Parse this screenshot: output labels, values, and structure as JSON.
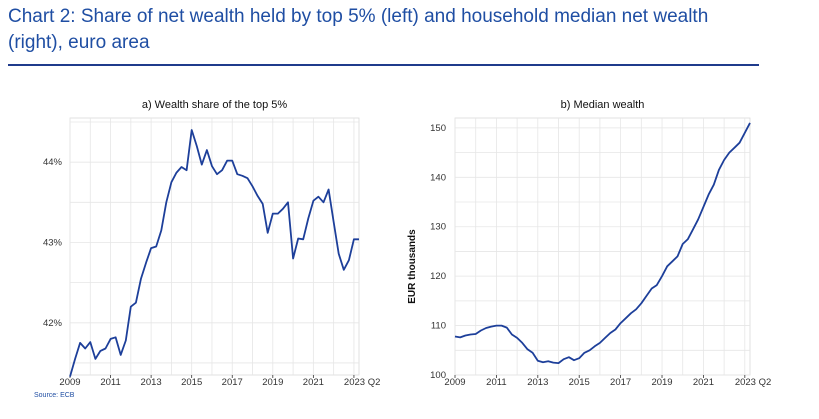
{
  "title": "Chart 2: Share of net wealth held by top 5% (left) and household median net wealth (right), euro area",
  "source": "Source: ECB",
  "colors": {
    "title": "#1f4ea3",
    "line": "#1d3f9a",
    "grid": "#e6e6e6",
    "axis": "#333333"
  },
  "chart_data": [
    {
      "type": "line",
      "title": "a) Wealth share of the top 5%",
      "xlabel": "",
      "ylabel": "",
      "xlim": [
        2009,
        2023.25
      ],
      "ylim": [
        41.35,
        44.55
      ],
      "yticks": [
        42,
        43,
        44
      ],
      "ytick_labels": [
        "42%",
        "43%",
        "44%"
      ],
      "xticks": [
        2009,
        2011,
        2013,
        2015,
        2017,
        2019,
        2021,
        2023
      ],
      "xtick_labels": [
        "2009",
        "2011",
        "2013",
        "2015",
        "2017",
        "2019",
        "2021",
        "2023 Q2"
      ],
      "grid": true,
      "series": [
        {
          "name": "Top 5% wealth share",
          "x": [
            2009,
            2009.25,
            2009.5,
            2009.75,
            2010,
            2010.25,
            2010.5,
            2010.75,
            2011,
            2011.25,
            2011.5,
            2011.75,
            2012,
            2012.25,
            2012.5,
            2012.75,
            2013,
            2013.25,
            2013.5,
            2013.75,
            2014,
            2014.25,
            2014.5,
            2014.75,
            2015,
            2015.25,
            2015.5,
            2015.75,
            2016,
            2016.25,
            2016.5,
            2016.75,
            2017,
            2017.25,
            2017.5,
            2017.75,
            2018,
            2018.25,
            2018.5,
            2018.75,
            2019,
            2019.25,
            2019.5,
            2019.75,
            2020,
            2020.25,
            2020.5,
            2020.75,
            2021,
            2021.25,
            2021.5,
            2021.75,
            2022,
            2022.25,
            2022.5,
            2022.75,
            2023,
            2023.25
          ],
          "values": [
            41.33,
            41.55,
            41.75,
            41.68,
            41.76,
            41.55,
            41.65,
            41.68,
            41.8,
            41.82,
            41.6,
            41.78,
            42.2,
            42.25,
            42.55,
            42.75,
            42.93,
            42.95,
            43.15,
            43.5,
            43.75,
            43.87,
            43.94,
            43.9,
            44.4,
            44.2,
            43.97,
            44.15,
            43.95,
            43.85,
            43.9,
            44.02,
            44.02,
            43.85,
            43.83,
            43.8,
            43.7,
            43.58,
            43.48,
            43.12,
            43.36,
            43.36,
            43.42,
            43.5,
            42.8,
            43.05,
            43.04,
            43.3,
            43.52,
            43.57,
            43.5,
            43.66,
            43.26,
            42.86,
            42.66,
            42.78,
            43.04,
            43.04
          ]
        }
      ]
    },
    {
      "type": "line",
      "title": "b) Median wealth",
      "xlabel": "",
      "ylabel": "EUR thousands",
      "xlim": [
        2009,
        2023.25
      ],
      "ylim": [
        100,
        152
      ],
      "yticks": [
        100,
        110,
        120,
        130,
        140,
        150
      ],
      "ytick_labels": [
        "100",
        "110",
        "120",
        "130",
        "140",
        "150"
      ],
      "xticks": [
        2009,
        2011,
        2013,
        2015,
        2017,
        2019,
        2021,
        2023
      ],
      "xtick_labels": [
        "2009",
        "2011",
        "2013",
        "2015",
        "2017",
        "2019",
        "2021",
        "2023 Q2"
      ],
      "grid": true,
      "series": [
        {
          "name": "Median net wealth",
          "x": [
            2009,
            2009.25,
            2009.5,
            2009.75,
            2010,
            2010.25,
            2010.5,
            2010.75,
            2011,
            2011.25,
            2011.5,
            2011.75,
            2012,
            2012.25,
            2012.5,
            2012.75,
            2013,
            2013.25,
            2013.5,
            2013.75,
            2014,
            2014.25,
            2014.5,
            2014.75,
            2015,
            2015.25,
            2015.5,
            2015.75,
            2016,
            2016.25,
            2016.5,
            2016.75,
            2017,
            2017.25,
            2017.5,
            2017.75,
            2018,
            2018.25,
            2018.5,
            2018.75,
            2019,
            2019.25,
            2019.5,
            2019.75,
            2020,
            2020.25,
            2020.5,
            2020.75,
            2021,
            2021.25,
            2021.5,
            2021.75,
            2022,
            2022.25,
            2022.5,
            2022.75,
            2023,
            2023.25
          ],
          "values": [
            107.8,
            107.6,
            108.0,
            108.2,
            108.3,
            109.0,
            109.5,
            109.8,
            110.0,
            110.0,
            109.6,
            108.2,
            107.5,
            106.5,
            105.2,
            104.5,
            102.9,
            102.6,
            102.8,
            102.5,
            102.4,
            103.2,
            103.6,
            103.0,
            103.4,
            104.5,
            105.0,
            105.8,
            106.5,
            107.5,
            108.5,
            109.2,
            110.5,
            111.5,
            112.5,
            113.3,
            114.5,
            116.0,
            117.5,
            118.2,
            120.0,
            122.0,
            123.0,
            124.0,
            126.5,
            127.5,
            129.5,
            131.5,
            134.0,
            136.5,
            138.5,
            141.5,
            143.5,
            145.0,
            146.0,
            147.0,
            149.0,
            151.0
          ]
        }
      ]
    }
  ]
}
